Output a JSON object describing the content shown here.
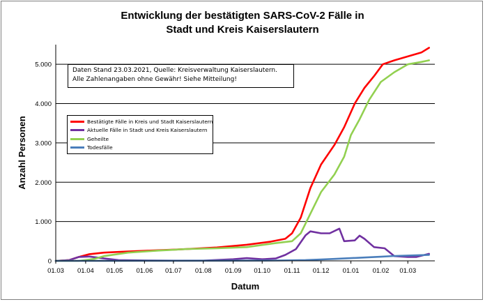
{
  "chart_data": {
    "type": "line",
    "title": "Entwicklung der bestätigten SARS-CoV-2 Fälle in",
    "title_line2": "Stadt und Kreis Kaiserslautern",
    "xlabel": "Datum",
    "ylabel": "Anzahl Personen",
    "ylim": [
      0,
      5500
    ],
    "yticks": [
      0,
      1000,
      2000,
      3000,
      4000,
      5000
    ],
    "ytick_labels": [
      "0",
      "1.000",
      "2.000",
      "3.000",
      "4.000",
      "5.000"
    ],
    "xlim": [
      "2020-03-01",
      "2021-03-29"
    ],
    "xticks": [
      "2020-03-01",
      "2020-04-01",
      "2020-05-01",
      "2020-06-01",
      "2020-07-01",
      "2020-08-01",
      "2020-09-01",
      "2020-10-01",
      "2020-11-01",
      "2020-12-01",
      "2021-01-01",
      "2021-02-01",
      "2021-03-01"
    ],
    "xtick_labels": [
      "01.03",
      "01.04",
      "01.05",
      "01.06",
      "01.07",
      "01.08",
      "01.09",
      "01.10",
      "01.11",
      "01.12",
      "01.01",
      "01.02",
      "01.03"
    ],
    "grid": "horizontal",
    "annotation": "Daten Stand 23.03.2021, Quelle: Kreisverwaltung Kaiserslautern. Alle Zahlenangaben ohne Gewähr! Siehe Mitteilung!",
    "legend_position": "top-left",
    "series": [
      {
        "name": "Bestätigte Fälle in Kreis und Stadt Kaiserslautern",
        "color": "#ff0000",
        "points": [
          [
            "2020-03-01",
            0
          ],
          [
            "2020-03-15",
            20
          ],
          [
            "2020-03-25",
            100
          ],
          [
            "2020-04-05",
            170
          ],
          [
            "2020-04-20",
            210
          ],
          [
            "2020-05-15",
            240
          ],
          [
            "2020-06-15",
            270
          ],
          [
            "2020-07-15",
            300
          ],
          [
            "2020-08-15",
            340
          ],
          [
            "2020-09-15",
            410
          ],
          [
            "2020-10-10",
            490
          ],
          [
            "2020-10-25",
            560
          ],
          [
            "2020-11-01",
            700
          ],
          [
            "2020-11-10",
            1100
          ],
          [
            "2020-11-20",
            1850
          ],
          [
            "2020-12-01",
            2450
          ],
          [
            "2020-12-15",
            2950
          ],
          [
            "2020-12-25",
            3400
          ],
          [
            "2021-01-05",
            4000
          ],
          [
            "2021-01-15",
            4400
          ],
          [
            "2021-01-25",
            4700
          ],
          [
            "2021-02-03",
            5000
          ],
          [
            "2021-02-15",
            5100
          ],
          [
            "2021-03-01",
            5200
          ],
          [
            "2021-03-15",
            5300
          ],
          [
            "2021-03-23",
            5420
          ]
        ]
      },
      {
        "name": "Aktuelle Fälle in Stadt und Kreis Kaiserslautern",
        "color": "#7030a0",
        "points": [
          [
            "2020-03-01",
            0
          ],
          [
            "2020-03-15",
            20
          ],
          [
            "2020-03-25",
            100
          ],
          [
            "2020-04-05",
            110
          ],
          [
            "2020-04-20",
            60
          ],
          [
            "2020-05-05",
            20
          ],
          [
            "2020-06-01",
            10
          ],
          [
            "2020-07-01",
            5
          ],
          [
            "2020-08-01",
            5
          ],
          [
            "2020-09-01",
            40
          ],
          [
            "2020-09-15",
            70
          ],
          [
            "2020-10-01",
            40
          ],
          [
            "2020-10-15",
            60
          ],
          [
            "2020-10-25",
            150
          ],
          [
            "2020-11-05",
            300
          ],
          [
            "2020-11-15",
            650
          ],
          [
            "2020-11-20",
            750
          ],
          [
            "2020-12-01",
            700
          ],
          [
            "2020-12-10",
            700
          ],
          [
            "2020-12-20",
            820
          ],
          [
            "2020-12-25",
            500
          ],
          [
            "2021-01-05",
            520
          ],
          [
            "2021-01-10",
            640
          ],
          [
            "2021-01-15",
            560
          ],
          [
            "2021-01-25",
            350
          ],
          [
            "2021-02-05",
            320
          ],
          [
            "2021-02-15",
            120
          ],
          [
            "2021-03-01",
            100
          ],
          [
            "2021-03-10",
            100
          ],
          [
            "2021-03-23",
            180
          ]
        ]
      },
      {
        "name": "Geheilte",
        "color": "#92d050",
        "points": [
          [
            "2020-03-01",
            0
          ],
          [
            "2020-03-25",
            0
          ],
          [
            "2020-04-10",
            50
          ],
          [
            "2020-04-20",
            120
          ],
          [
            "2020-05-15",
            210
          ],
          [
            "2020-06-15",
            260
          ],
          [
            "2020-07-15",
            300
          ],
          [
            "2020-08-15",
            320
          ],
          [
            "2020-09-15",
            350
          ],
          [
            "2020-10-15",
            450
          ],
          [
            "2020-11-01",
            500
          ],
          [
            "2020-11-10",
            700
          ],
          [
            "2020-11-20",
            1200
          ],
          [
            "2020-12-01",
            1750
          ],
          [
            "2020-12-15",
            2200
          ],
          [
            "2020-12-25",
            2650
          ],
          [
            "2021-01-01",
            3200
          ],
          [
            "2021-01-10",
            3600
          ],
          [
            "2021-01-20",
            4100
          ],
          [
            "2021-02-01",
            4550
          ],
          [
            "2021-02-15",
            4800
          ],
          [
            "2021-03-01",
            5000
          ],
          [
            "2021-03-15",
            5060
          ],
          [
            "2021-03-23",
            5100
          ]
        ]
      },
      {
        "name": "Todesfälle",
        "color": "#4a7ebb",
        "points": [
          [
            "2020-03-01",
            0
          ],
          [
            "2020-04-01",
            0
          ],
          [
            "2020-05-01",
            2
          ],
          [
            "2020-06-01",
            3
          ],
          [
            "2020-09-01",
            5
          ],
          [
            "2020-10-15",
            8
          ],
          [
            "2020-11-15",
            20
          ],
          [
            "2020-12-01",
            35
          ],
          [
            "2020-12-15",
            50
          ],
          [
            "2021-01-01",
            70
          ],
          [
            "2021-01-15",
            85
          ],
          [
            "2021-02-01",
            105
          ],
          [
            "2021-02-15",
            125
          ],
          [
            "2021-03-01",
            135
          ],
          [
            "2021-03-15",
            145
          ],
          [
            "2021-03-23",
            150
          ]
        ]
      }
    ]
  }
}
